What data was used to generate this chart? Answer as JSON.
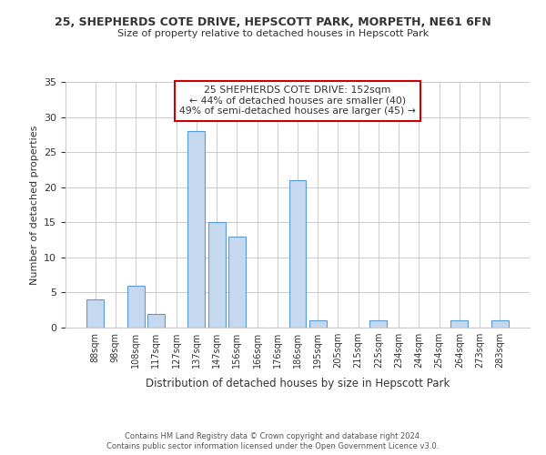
{
  "title": "25, SHEPHERDS COTE DRIVE, HEPSCOTT PARK, MORPETH, NE61 6FN",
  "subtitle": "Size of property relative to detached houses in Hepscott Park",
  "xlabel": "Distribution of detached houses by size in Hepscott Park",
  "ylabel": "Number of detached properties",
  "bar_labels": [
    "88sqm",
    "98sqm",
    "108sqm",
    "117sqm",
    "127sqm",
    "137sqm",
    "147sqm",
    "156sqm",
    "166sqm",
    "176sqm",
    "186sqm",
    "195sqm",
    "205sqm",
    "215sqm",
    "225sqm",
    "234sqm",
    "244sqm",
    "254sqm",
    "264sqm",
    "273sqm",
    "283sqm"
  ],
  "bar_values": [
    4,
    0,
    6,
    2,
    0,
    28,
    15,
    13,
    0,
    0,
    21,
    1,
    0,
    0,
    1,
    0,
    0,
    0,
    1,
    0,
    1
  ],
  "bar_color": "#c5d8f0",
  "bar_edge_color": "#5b9bd5",
  "ylim": [
    0,
    35
  ],
  "yticks": [
    0,
    5,
    10,
    15,
    20,
    25,
    30,
    35
  ],
  "annotation_box_text": "25 SHEPHERDS COTE DRIVE: 152sqm\n← 44% of detached houses are smaller (40)\n49% of semi-detached houses are larger (45) →",
  "annotation_box_edge_color": "#cc0000",
  "annotation_box_face_color": "#ffffff",
  "footer_line1": "Contains HM Land Registry data © Crown copyright and database right 2024.",
  "footer_line2": "Contains public sector information licensed under the Open Government Licence v3.0.",
  "background_color": "#ffffff",
  "grid_color": "#cccccc"
}
